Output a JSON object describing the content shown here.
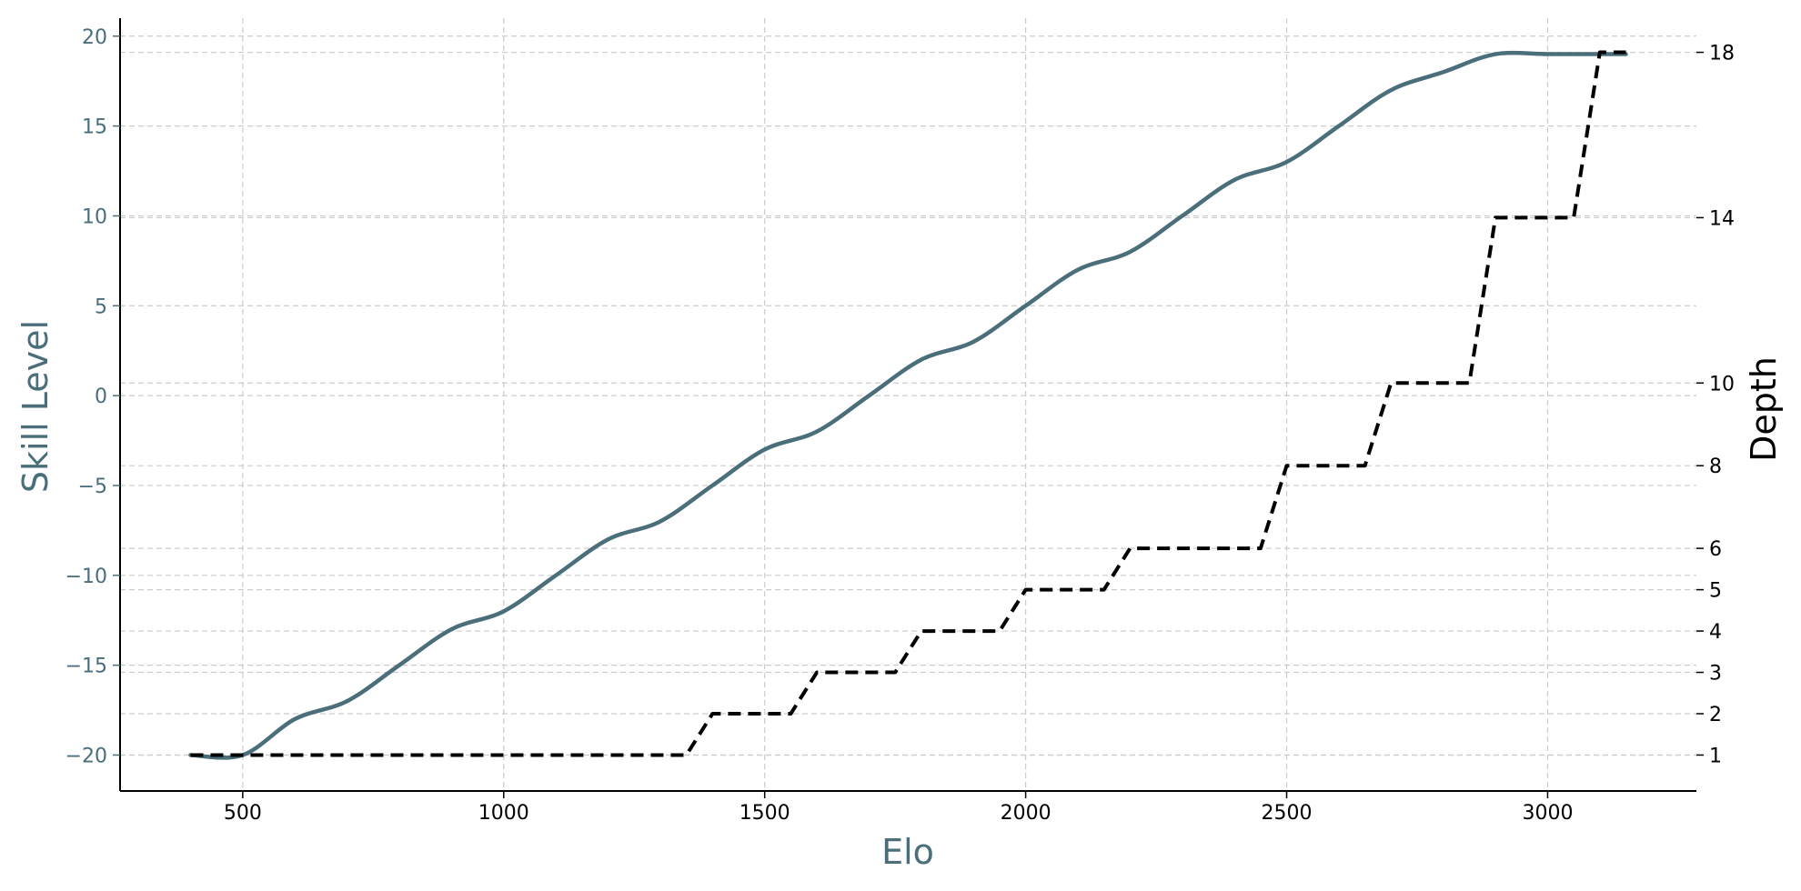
{
  "chart_data": {
    "type": "line",
    "xlabel": "Elo",
    "ylabel_left": "Skill Level",
    "ylabel_right": "Depth",
    "xlim": [
      265,
      3285
    ],
    "ylim_left": [
      -22,
      21
    ],
    "x_ticks": [
      "500",
      "1000",
      "1500",
      "2000",
      "2500",
      "3000"
    ],
    "y_left_ticks": [
      "20",
      "15",
      "10",
      "5",
      "0",
      "−5",
      "−10",
      "−15",
      "−20"
    ],
    "y_right_ticks": [
      "18",
      "14",
      "10",
      "8",
      "6",
      "5",
      "4",
      "3",
      "2",
      "1"
    ],
    "grid": true,
    "series": [
      {
        "axis": "left",
        "style": "solid",
        "x": [
          400,
          500,
          600,
          700,
          800,
          900,
          1000,
          1100,
          1200,
          1300,
          1400,
          1500,
          1600,
          1700,
          1800,
          1900,
          2000,
          2100,
          2200,
          2300,
          2400,
          2500,
          2600,
          2700,
          2800,
          2900,
          3000,
          3100,
          3150
        ],
        "values": [
          -20,
          -20,
          -18,
          -17,
          -15,
          -13,
          -12,
          -10,
          -8,
          -7,
          -5,
          -3,
          -2,
          0,
          2,
          3,
          5,
          7,
          8,
          10,
          12,
          13,
          15,
          17,
          18,
          19,
          19,
          19,
          19
        ]
      },
      {
        "axis": "right",
        "style": "dashed",
        "x": [
          400,
          1350,
          1400,
          1550,
          1600,
          1750,
          1800,
          1950,
          2000,
          2150,
          2200,
          2450,
          2500,
          2650,
          2700,
          2850,
          2900,
          3050,
          3100,
          3150
        ],
        "values": [
          1,
          1,
          2,
          2,
          3,
          3,
          4,
          4,
          5,
          5,
          6,
          6,
          8,
          8,
          10,
          10,
          14,
          14,
          18,
          18
        ]
      }
    ],
    "colors": {
      "skill": "#4a6e7a",
      "depth": "#000000",
      "grid": "#cccccc",
      "axis": "#000000"
    }
  }
}
